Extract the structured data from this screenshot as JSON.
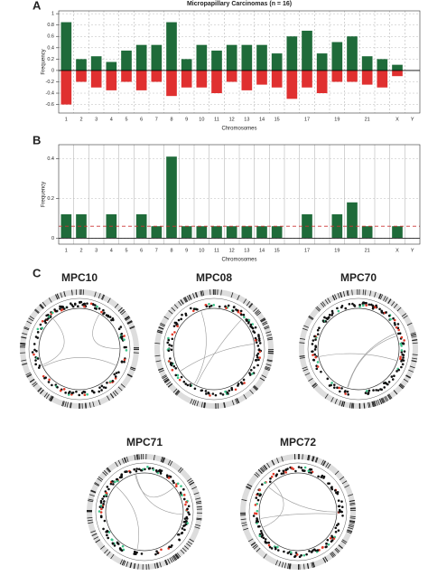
{
  "chart_data": [
    {
      "type": "bar",
      "panel_label": "A",
      "title": "Micropapillary Carcinomas (n = 16)",
      "y_label": "Frequency",
      "x_label": "Chromosomes",
      "categories": [
        "1",
        "2",
        "3",
        "4",
        "5",
        "6",
        "7",
        "8",
        "9",
        "10",
        "11",
        "12",
        "13",
        "14",
        "15",
        null,
        "17",
        null,
        "19",
        null,
        "21",
        null,
        "X",
        "Y"
      ],
      "series": [
        {
          "color": "#1f6b3a",
          "values": [
            0.85,
            0.2,
            0.25,
            0.15,
            0.35,
            0.45,
            0.45,
            0.85,
            0.2,
            0.45,
            0.35,
            0.45,
            0.45,
            0.45,
            0.3,
            0.6,
            0.7,
            0.3,
            0.5,
            0.6,
            0.25,
            0.2,
            0.1,
            0
          ]
        },
        {
          "color": "#e03030",
          "values": [
            -0.6,
            -0.2,
            -0.3,
            -0.35,
            -0.2,
            -0.35,
            -0.2,
            -0.45,
            -0.3,
            -0.3,
            -0.4,
            -0.2,
            -0.35,
            -0.25,
            -0.3,
            -0.5,
            -0.3,
            -0.4,
            -0.2,
            -0.2,
            -0.25,
            -0.3,
            -0.1,
            0
          ]
        }
      ],
      "ylim": [
        -0.75,
        1.05
      ],
      "yticks": [
        -0.6,
        -0.4,
        -0.2,
        0,
        0.2,
        0.4,
        0.6,
        0.8,
        1
      ],
      "grid": true
    },
    {
      "type": "bar",
      "panel_label": "B",
      "y_label": "Frequency",
      "x_label": "Chromosomes",
      "categories": [
        "1",
        "2",
        "3",
        "4",
        "5",
        "6",
        "7",
        "8",
        "9",
        "10",
        "11",
        "12",
        "13",
        "14",
        "15",
        null,
        "17",
        null,
        "19",
        null,
        "21",
        null,
        "X",
        "Y"
      ],
      "series": [
        {
          "color": "#1f6b3a",
          "values": [
            0.12,
            0.12,
            0,
            0.12,
            0,
            0.12,
            0.06,
            0.41,
            0.06,
            0.06,
            0.06,
            0.06,
            0.06,
            0.06,
            0.06,
            0,
            0.12,
            0,
            0.12,
            0.18,
            0.06,
            0,
            0.06,
            0
          ]
        }
      ],
      "reference_line": {
        "value": 0.06,
        "color": "#cc3333"
      },
      "ylim": [
        -0.03,
        0.47
      ],
      "yticks": [
        0,
        0.2,
        0.4
      ],
      "grid": true
    }
  ],
  "circos": {
    "panel_label": "C",
    "samples": [
      "MPC10",
      "MPC08",
      "MPC70",
      "MPC71",
      "MPC72"
    ]
  }
}
